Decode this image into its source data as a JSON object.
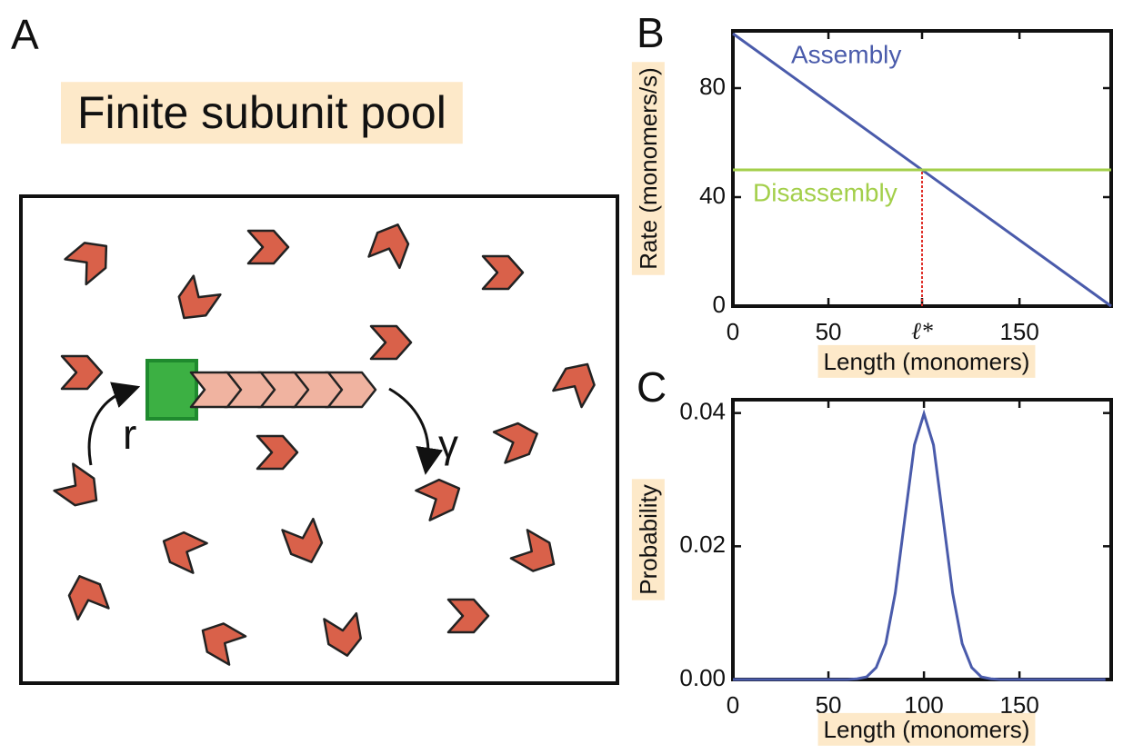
{
  "panel_a": {
    "label": "A",
    "title": "Finite subunit pool",
    "growth_rate": "r",
    "shrink_rate": "γ"
  },
  "chart_data": [
    {
      "type": "line",
      "panel_label": "B",
      "x_label": "Length (monomers)",
      "y_label": "Rate (monomers/s)",
      "series": [
        {
          "name": "Assembly",
          "color": "#4a5bab",
          "x": [
            0,
            198
          ],
          "values": [
            100,
            0
          ]
        },
        {
          "name": "Disassembly",
          "color": "#a3cf4a",
          "x": [
            0,
            198
          ],
          "values": [
            50,
            50
          ]
        }
      ],
      "xlim": [
        0,
        198
      ],
      "ylim": [
        0,
        101
      ],
      "xticks": [
        0,
        50,
        {
          "value": 99,
          "label": "ℓ*"
        },
        150
      ],
      "yticks": [
        0,
        40,
        80
      ],
      "highlight_color": "#e0302a"
    },
    {
      "type": "line",
      "panel_label": "C",
      "x_label": "Length (monomers)",
      "y_label": "Probability",
      "series": [
        {
          "name": null,
          "color": "#4a5bab",
          "x": [
            0,
            5,
            10,
            15,
            20,
            25,
            30,
            35,
            40,
            45,
            50,
            55,
            60,
            65,
            70,
            75,
            80,
            85,
            90,
            95,
            100,
            105,
            110,
            115,
            120,
            125,
            130,
            135,
            140,
            145,
            150,
            155,
            160,
            165,
            170,
            175,
            180,
            185,
            190,
            195
          ],
          "values": [
            0,
            0,
            0,
            0,
            0,
            0,
            0,
            0,
            0,
            0,
            0,
            0,
            0,
            0.0001,
            0.0004,
            0.0018,
            0.0054,
            0.013,
            0.0242,
            0.0352,
            0.0399,
            0.0352,
            0.0242,
            0.013,
            0.0054,
            0.0018,
            0.0004,
            0.0001,
            0,
            0,
            0,
            0,
            0,
            0,
            0,
            0,
            0,
            0,
            0,
            0
          ]
        }
      ],
      "xlim": [
        0,
        198
      ],
      "ylim": [
        0,
        0.042
      ],
      "xticks": [
        0,
        50,
        100,
        150
      ],
      "yticks": [
        {
          "value": 0,
          "label": "0.00"
        },
        {
          "value": 0.02,
          "label": "0.02"
        },
        {
          "value": 0.04,
          "label": "0.04"
        }
      ]
    }
  ]
}
